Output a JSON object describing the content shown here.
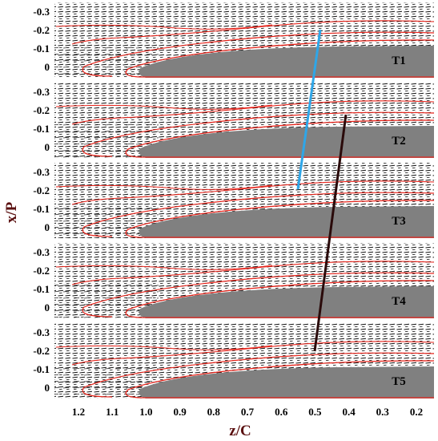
{
  "figure": {
    "x_axis_title": "z/C",
    "y_axis_title": "x/P",
    "y_tick_labels": [
      "-0.3",
      "-0.2",
      "-0.1",
      "0"
    ],
    "x_tick_labels": [
      "1.2",
      "1.1",
      "1.0",
      "0.9",
      "0.8",
      "0.7",
      "0.6",
      "0.5",
      "0.4",
      "0.3",
      "0.2"
    ],
    "panels": [
      {
        "label": "T1"
      },
      {
        "label": "T2"
      },
      {
        "label": "T3"
      },
      {
        "label": "T4"
      },
      {
        "label": "T5"
      }
    ],
    "colors": {
      "blade": "#808080",
      "contour": "#e8251c",
      "vectors": "#111111",
      "line_blue": "#2ea6e8",
      "line_dark": "#2a0a0a",
      "axis_title": "#5a1010"
    }
  }
}
